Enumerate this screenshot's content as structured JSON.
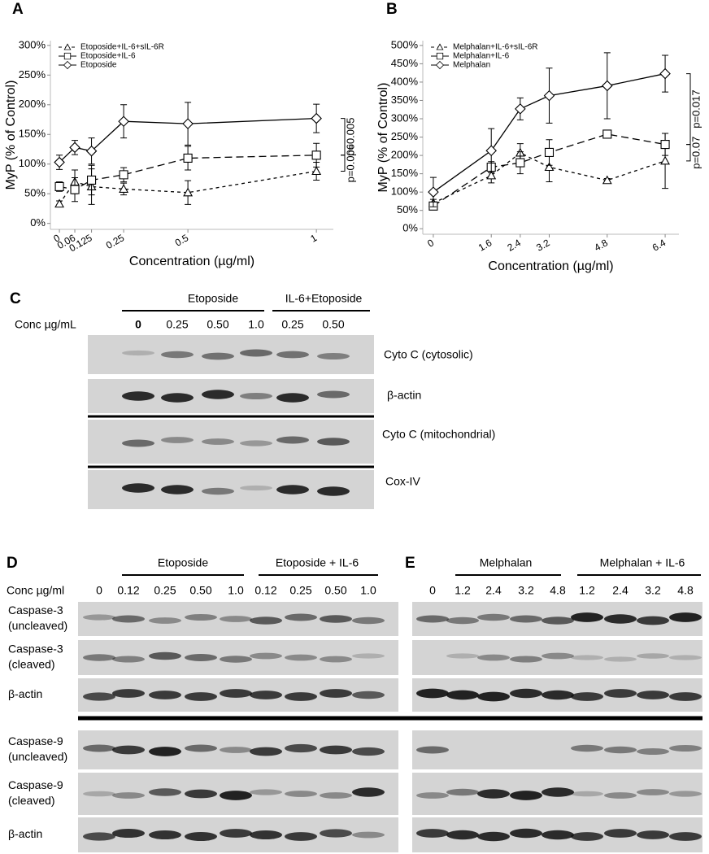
{
  "chart_data": [
    {
      "type": "line",
      "title": "A",
      "y_label": "MyP (% of Control)",
      "x_label": "Concentration (µg/ml)",
      "x": [
        0,
        0.06,
        0.125,
        0.25,
        0.5,
        1
      ],
      "xlim": [
        -0.035,
        1.066
      ],
      "xticks": [
        0,
        0.06,
        0.125,
        0.25,
        0.5,
        1
      ],
      "ylim": [
        -10,
        308
      ],
      "yticks": [
        {
          "value": 0,
          "label": "0%"
        },
        {
          "value": 50,
          "label": "50%"
        },
        {
          "value": 100,
          "label": "100%"
        },
        {
          "value": 150,
          "label": "150%"
        },
        {
          "value": 200,
          "label": "200%"
        },
        {
          "value": 250,
          "label": "250%"
        },
        {
          "value": 300,
          "label": "300%"
        }
      ],
      "legend": "upper left",
      "series": [
        {
          "name": "Etoposide+IL-6+sIL-6R",
          "color": "#000000",
          "marker": "triangle",
          "dash": "short",
          "values": [
            33,
            70,
            62,
            58,
            52,
            88
          ],
          "errors": [
            5,
            20,
            30,
            10,
            20,
            15
          ]
        },
        {
          "name": "Etoposide+IL-6",
          "color": "#000000",
          "marker": "square",
          "dash": "long",
          "values": [
            62,
            57,
            73,
            82,
            110,
            115
          ],
          "errors": [
            8,
            20,
            25,
            12,
            20,
            20
          ]
        },
        {
          "name": "Etoposide",
          "color": "#000000",
          "marker": "diamond",
          "dash": "solid",
          "values": [
            103,
            128,
            122,
            172,
            168,
            177
          ],
          "errors": [
            12,
            12,
            22,
            28,
            36,
            24
          ]
        }
      ],
      "annotations": [
        "p=0.005",
        "p=0.006"
      ]
    },
    {
      "type": "line",
      "title": "B",
      "y_label": "MyP (% of Control)",
      "x_label": "Concentration (µg/ml)",
      "x": [
        0,
        1.6,
        2.4,
        3.2,
        4.8,
        6.4
      ],
      "xlim": [
        -0.29,
        6.78
      ],
      "xticks": [
        0,
        1.6,
        2.4,
        3.2,
        4.8,
        6.4
      ],
      "ylim": [
        -15,
        513
      ],
      "yticks": [
        {
          "value": 0,
          "label": "0%"
        },
        {
          "value": 50,
          "label": "50%"
        },
        {
          "value": 100,
          "label": "100%"
        },
        {
          "value": 150,
          "label": "150%"
        },
        {
          "value": 200,
          "label": "200%"
        },
        {
          "value": 250,
          "label": "250%"
        },
        {
          "value": 300,
          "label": "300%"
        },
        {
          "value": 350,
          "label": "350%"
        },
        {
          "value": 400,
          "label": "400%"
        },
        {
          "value": 450,
          "label": "450%"
        },
        {
          "value": 500,
          "label": "500%"
        }
      ],
      "legend": "upper left",
      "series": [
        {
          "name": "Melphalan+IL-6+sIL-6R",
          "color": "#000000",
          "marker": "triangle",
          "dash": "short",
          "values": [
            70,
            145,
            207,
            168,
            132,
            185
          ],
          "errors": [
            10,
            20,
            25,
            40,
            5,
            75
          ]
        },
        {
          "name": "Melphalan+IL-6",
          "color": "#000000",
          "marker": "square",
          "dash": "long",
          "values": [
            62,
            168,
            180,
            208,
            258,
            230
          ],
          "errors": [
            8,
            15,
            30,
            35,
            8,
            30
          ]
        },
        {
          "name": "Melphalan",
          "color": "#000000",
          "marker": "diamond",
          "dash": "solid",
          "values": [
            100,
            213,
            327,
            363,
            390,
            423
          ],
          "errors": [
            40,
            60,
            30,
            75,
            90,
            50
          ]
        }
      ],
      "annotations": [
        "p=0.017",
        "p=0.07"
      ]
    }
  ],
  "panel_c": {
    "title": "C",
    "groups": [
      "Etoposide",
      "IL-6+Etoposide"
    ],
    "conc_label": "Conc µg/mL",
    "lanes": [
      "0",
      "0.25",
      "0.50",
      "1.0",
      "0.25",
      "0.50"
    ],
    "rows": [
      "Cyto C (cytosolic)",
      "β-actin",
      "Cyto C (mitochondrial)",
      "Cox-IV"
    ]
  },
  "panel_d": {
    "title": "D",
    "groups": [
      "Etoposide",
      "Etoposide + IL-6"
    ],
    "conc_label": "Conc µg/ml",
    "lanes": [
      "0",
      "0.12",
      "0.25",
      "0.50",
      "1.0",
      "0.12",
      "0.25",
      "0.50",
      "1.0"
    ],
    "rows": [
      [
        "Caspase-3",
        "(uncleaved)"
      ],
      [
        "Caspase-3",
        "(cleaved)"
      ],
      [
        "β-actin"
      ],
      [
        "Caspase-9",
        "(uncleaved)"
      ],
      [
        "Caspase-9",
        "(cleaved)"
      ],
      [
        "β-actin"
      ]
    ]
  },
  "panel_e": {
    "title": "E",
    "groups": [
      "Melphalan",
      "Melphalan + IL-6"
    ],
    "lanes": [
      "0",
      "1.2",
      "2.4",
      "3.2",
      "4.8",
      "1.2",
      "2.4",
      "3.2",
      "4.8"
    ]
  }
}
